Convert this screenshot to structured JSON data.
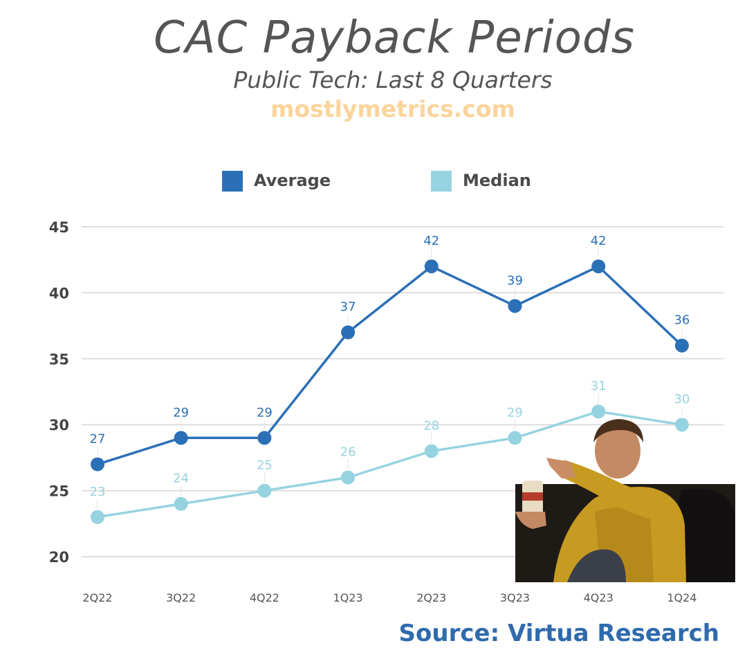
{
  "header": {
    "title": "CAC Payback Periods",
    "subtitle": "Public Tech: Last 8 Quarters",
    "brand": "mostlymetrics.com"
  },
  "source": "Source: Virtua Research",
  "colors": {
    "average": "#2b6fb7",
    "median": "#96d3e0",
    "grid": "#dddddd",
    "axis_text": "#444444"
  },
  "chart_data": {
    "type": "line",
    "title": "CAC Payback Periods",
    "subtitle": "Public Tech: Last 8 Quarters",
    "xlabel": "",
    "ylabel": "",
    "categories": [
      "2Q22",
      "3Q22",
      "4Q22",
      "1Q23",
      "2Q23",
      "3Q23",
      "4Q23",
      "1Q24"
    ],
    "y_ticks": [
      20,
      25,
      30,
      35,
      40,
      45
    ],
    "ylim": [
      20,
      45
    ],
    "grid": true,
    "legend_position": "top",
    "series": [
      {
        "name": "Average",
        "color": "#2b6fb7",
        "values": [
          27,
          29,
          29,
          37,
          42,
          39,
          42,
          36
        ]
      },
      {
        "name": "Median",
        "color": "#96d3e0",
        "values": [
          23,
          24,
          25,
          26,
          28,
          29,
          31,
          30
        ]
      }
    ]
  },
  "overlay_image": {
    "icon": "man-in-yellow-shirt-pointing-photo"
  }
}
